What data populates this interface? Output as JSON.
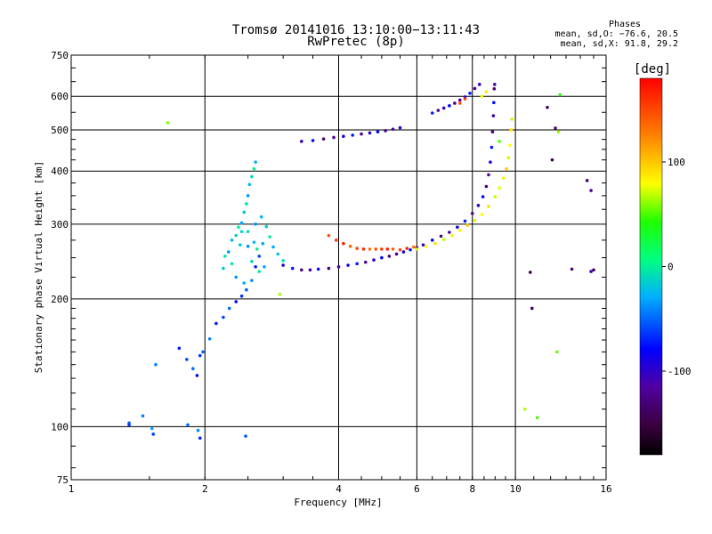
{
  "header": {
    "title_line1": "Tromsø 20141016 13:10:00−13:11:43",
    "title_line2": "RwPretec (8p)",
    "stats_heading": "Phases",
    "stats_line1": "mean, sd,O: −76.6, 20.5",
    "stats_line2": "mean, sd,X:  91.8, 29.2"
  },
  "chart_data": {
    "type": "scatter",
    "xlabel": "Frequency [MHz]",
    "ylabel": "Stationary phase Virtual Height [km]",
    "xscale": "log2",
    "yscale": "log",
    "xlim": [
      1,
      16
    ],
    "ylim": [
      75,
      750
    ],
    "x_ticks": [
      1,
      2,
      4,
      6,
      8,
      10,
      16
    ],
    "y_ticks": [
      75,
      100,
      200,
      300,
      400,
      500,
      600,
      750
    ],
    "grid": true,
    "colorbar": {
      "label": "[deg]",
      "range": [
        -180,
        180
      ],
      "ticks": [
        100,
        0,
        -100
      ],
      "colormap": "rainbow (black→purple→blue→cyan→green→yellow→red)"
    },
    "series": [
      {
        "color_phase": -70,
        "points": [
          [
            1.35,
            101
          ],
          [
            1.35,
            102
          ],
          [
            1.45,
            106
          ],
          [
            1.52,
            99
          ],
          [
            1.53,
            96
          ],
          [
            1.83,
            101
          ],
          [
            1.93,
            98
          ],
          [
            1.95,
            94
          ],
          [
            2.47,
            95
          ]
        ]
      },
      {
        "color_phase": -80,
        "points": [
          [
            1.55,
            140
          ],
          [
            1.75,
            153
          ],
          [
            1.82,
            144
          ],
          [
            1.88,
            137
          ],
          [
            1.92,
            132
          ],
          [
            1.95,
            147
          ],
          [
            1.98,
            150
          ],
          [
            2.05,
            161
          ],
          [
            2.12,
            175
          ],
          [
            2.2,
            181
          ],
          [
            2.27,
            190
          ],
          [
            2.35,
            197
          ],
          [
            2.42,
            203
          ],
          [
            2.48,
            210
          ],
          [
            2.55,
            221
          ],
          [
            2.6,
            238
          ],
          [
            2.65,
            252
          ]
        ]
      },
      {
        "color_phase": -40,
        "points": [
          [
            2.22,
            252
          ],
          [
            2.26,
            258
          ],
          [
            2.3,
            275
          ],
          [
            2.35,
            282
          ],
          [
            2.38,
            295
          ],
          [
            2.42,
            302
          ],
          [
            2.45,
            320
          ],
          [
            2.48,
            335
          ],
          [
            2.5,
            350
          ],
          [
            2.52,
            372
          ],
          [
            2.55,
            388
          ],
          [
            2.58,
            405
          ],
          [
            2.6,
            420
          ],
          [
            2.4,
            268
          ],
          [
            2.5,
            288
          ],
          [
            2.6,
            300
          ],
          [
            2.68,
            312
          ],
          [
            2.75,
            296
          ],
          [
            2.8,
            280
          ],
          [
            2.85,
            265
          ],
          [
            2.92,
            255
          ],
          [
            3.0,
            246
          ],
          [
            2.35,
            225
          ],
          [
            2.45,
            218
          ],
          [
            2.55,
            245
          ],
          [
            2.65,
            232
          ],
          [
            2.7,
            270
          ],
          [
            2.2,
            236
          ],
          [
            2.3,
            242
          ],
          [
            2.5,
            266
          ],
          [
            2.58,
            272
          ],
          [
            2.42,
            288
          ],
          [
            2.62,
            262
          ],
          [
            2.72,
            238
          ]
        ]
      },
      {
        "color_phase": -110,
        "points": [
          [
            3.0,
            240
          ],
          [
            3.15,
            236
          ],
          [
            3.3,
            234
          ],
          [
            3.45,
            234
          ],
          [
            3.6,
            235
          ],
          [
            3.8,
            236
          ],
          [
            4.0,
            238
          ],
          [
            4.2,
            240
          ],
          [
            4.4,
            242
          ],
          [
            4.6,
            244
          ],
          [
            4.8,
            247
          ],
          [
            5.0,
            250
          ],
          [
            5.2,
            252
          ],
          [
            5.4,
            255
          ],
          [
            5.6,
            258
          ],
          [
            5.8,
            261
          ],
          [
            6.0,
            264
          ],
          [
            6.2,
            268
          ],
          [
            6.5,
            275
          ],
          [
            6.8,
            281
          ],
          [
            7.1,
            287
          ],
          [
            7.4,
            295
          ],
          [
            7.7,
            305
          ],
          [
            8.0,
            318
          ],
          [
            8.25,
            332
          ],
          [
            8.45,
            348
          ],
          [
            8.6,
            368
          ],
          [
            8.7,
            392
          ],
          [
            8.78,
            420
          ],
          [
            8.84,
            455
          ],
          [
            8.88,
            495
          ],
          [
            8.92,
            540
          ],
          [
            8.94,
            580
          ],
          [
            8.96,
            625
          ],
          [
            8.98,
            640
          ]
        ]
      },
      {
        "color_phase": -110,
        "points": [
          [
            3.3,
            470
          ],
          [
            3.5,
            472
          ],
          [
            3.7,
            476
          ],
          [
            3.9,
            480
          ],
          [
            4.1,
            483
          ],
          [
            4.3,
            486
          ],
          [
            4.5,
            489
          ],
          [
            4.7,
            492
          ],
          [
            4.9,
            495
          ],
          [
            5.1,
            498
          ],
          [
            5.3,
            502
          ],
          [
            5.5,
            506
          ],
          [
            6.5,
            548
          ],
          [
            6.7,
            556
          ],
          [
            6.9,
            563
          ],
          [
            7.1,
            570
          ],
          [
            7.3,
            578
          ],
          [
            7.5,
            588
          ],
          [
            7.7,
            598
          ],
          [
            7.9,
            610
          ],
          [
            8.1,
            626
          ],
          [
            8.3,
            640
          ]
        ]
      },
      {
        "color_phase": 150,
        "points": [
          [
            3.8,
            282
          ],
          [
            3.95,
            275
          ],
          [
            4.1,
            270
          ],
          [
            4.25,
            266
          ],
          [
            4.4,
            263
          ],
          [
            4.55,
            262
          ],
          [
            4.7,
            262
          ],
          [
            4.85,
            262
          ],
          [
            5.0,
            262
          ],
          [
            5.15,
            262
          ],
          [
            5.3,
            262
          ],
          [
            5.5,
            261
          ],
          [
            5.7,
            263
          ],
          [
            5.9,
            265
          ],
          [
            7.5,
            578
          ],
          [
            7.7,
            592
          ]
        ]
      },
      {
        "color_phase": 80,
        "points": [
          [
            6.0,
            262
          ],
          [
            6.3,
            266
          ],
          [
            6.6,
            270
          ],
          [
            6.9,
            276
          ],
          [
            7.2,
            282
          ],
          [
            7.5,
            290
          ],
          [
            7.8,
            298
          ],
          [
            8.1,
            306
          ],
          [
            8.4,
            316
          ],
          [
            8.7,
            330
          ],
          [
            9.0,
            348
          ],
          [
            9.2,
            365
          ],
          [
            9.4,
            385
          ],
          [
            9.55,
            405
          ],
          [
            9.65,
            430
          ],
          [
            9.72,
            460
          ],
          [
            9.78,
            500
          ],
          [
            9.82,
            530
          ],
          [
            8.4,
            600
          ],
          [
            8.6,
            615
          ]
        ]
      },
      {
        "color_phase": -130,
        "points": [
          [
            10.8,
            231
          ],
          [
            10.9,
            190
          ],
          [
            13.4,
            235
          ],
          [
            14.8,
            232
          ],
          [
            15.0,
            234
          ],
          [
            14.5,
            380
          ],
          [
            14.8,
            360
          ],
          [
            12.1,
            425
          ],
          [
            11.8,
            565
          ],
          [
            12.3,
            505
          ]
        ]
      },
      {
        "color_phase": 40,
        "points": [
          [
            10.5,
            110
          ],
          [
            11.2,
            105
          ],
          [
            12.4,
            150
          ],
          [
            12.5,
            495
          ],
          [
            12.6,
            605
          ],
          [
            9.2,
            470
          ],
          [
            1.65,
            520
          ],
          [
            2.95,
            205
          ]
        ]
      }
    ]
  }
}
